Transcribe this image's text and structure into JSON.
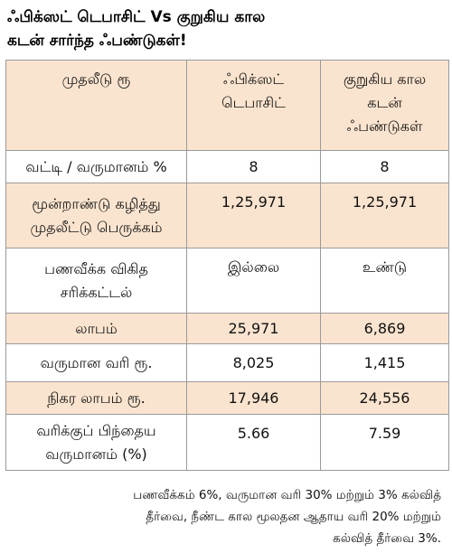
{
  "title": {
    "line1": "ஃபிக்ஸட் டெபாசிட் Vs குறுகிய கால",
    "line2": "கடன் சார்ந்த ஃபண்டுகள்!"
  },
  "table": {
    "header": {
      "c1": [
        "முதலீடு ரூ"
      ],
      "c2": [
        "ஃபிக்ஸட்",
        "டெபாசிட்"
      ],
      "c3": [
        "குறுகிய கால",
        "கடன்",
        "ஃபண்டுகள்"
      ]
    },
    "rows": [
      {
        "label": [
          "வட்டி / வருமானம் %"
        ],
        "fd": "8",
        "debt": "8"
      },
      {
        "label": [
          "மூன்றாண்டு கழித்து",
          "முதலீட்டு பெருக்கம்"
        ],
        "fd": "1,25,971",
        "debt": "1,25,971"
      },
      {
        "label": [
          "பணவீக்க விகித",
          "சரிக்கட்டல்"
        ],
        "fd": "இல்லை",
        "debt": "உண்டு"
      },
      {
        "label": [
          "லாபம்"
        ],
        "fd": "25,971",
        "debt": "6,869"
      },
      {
        "label": [
          "வருமான வரி ரூ."
        ],
        "fd": "8,025",
        "debt": "1,415"
      },
      {
        "label": [
          "நிகர லாபம் ரூ."
        ],
        "fd": "17,946",
        "debt": "24,556"
      },
      {
        "label": [
          "வரிக்குப் பிந்தைய",
          "வருமானம் (%)"
        ],
        "fd": "5.66",
        "debt": "7.59"
      }
    ]
  },
  "note": {
    "line1": "பணவீக்கம் 6%, வருமான வரி 30% மற்றும் 3% கல்வித்",
    "line2": "தீர்வை, நீண்ட கால மூலதன ஆதாய வரி 20% மற்றும்",
    "line3": "கல்வித் தீர்வை 3%."
  },
  "colors": {
    "row_highlight": "#fbe4cf",
    "border": "#9a9a9a"
  }
}
